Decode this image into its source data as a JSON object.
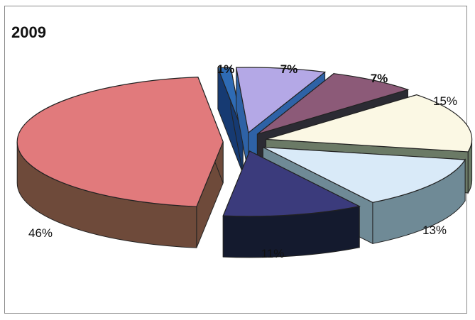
{
  "title": "2009",
  "chart_data": {
    "type": "pie",
    "title": "2009",
    "slices": [
      {
        "label": "1%",
        "value": 1,
        "top": "#2e6bb5",
        "side": "#163a72"
      },
      {
        "label": "7%",
        "value": 7,
        "top": "#b4a8e6",
        "side": "#2e62a6"
      },
      {
        "label": "7%",
        "value": 7,
        "top": "#8c5a78",
        "side": "#2b2b33"
      },
      {
        "label": "15%",
        "value": 15,
        "top": "#fbf8e4",
        "side": "#6b7a66"
      },
      {
        "label": "13%",
        "value": 13,
        "top": "#d9eaf8",
        "side": "#6f8a96"
      },
      {
        "label": "11%",
        "value": 11,
        "top": "#3b3b7c",
        "side": "#141a2e"
      },
      {
        "label": "46%",
        "value": 46,
        "top": "#e17a7c",
        "side": "#6e4a3a"
      }
    ]
  }
}
